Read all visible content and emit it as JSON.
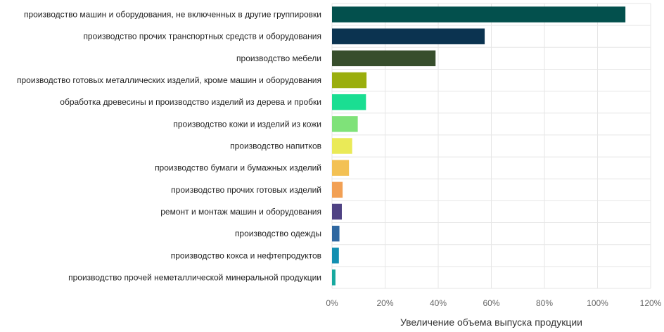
{
  "chart_data": {
    "type": "bar",
    "orientation": "horizontal",
    "categories": [
      "производство машин и оборудования, не включенных в другие группировки",
      "производство прочих транспортных средств и оборудования",
      "производство мебели",
      "производство готовых металлических изделий, кроме машин и оборудования",
      "обработка древесины и производство изделий из дерева и пробки",
      "производство кожи и изделий из кожи",
      "производство напитков",
      "производство бумаги и бумажных изделий",
      "производство прочих готовых изделий",
      "ремонт и монтаж машин и оборудования",
      "производство одежды",
      "производство кокса и нефтепродуктов",
      "производство прочей неметаллической минеральной продукции"
    ],
    "values": [
      110.5,
      57.5,
      39.0,
      13.0,
      12.8,
      9.7,
      7.6,
      6.4,
      4.0,
      3.7,
      2.8,
      2.6,
      1.3
    ],
    "colors": [
      "#03504d",
      "#0b3350",
      "#374e2c",
      "#9aae0d",
      "#1ade92",
      "#7fe279",
      "#eaea57",
      "#f3c154",
      "#f2a054",
      "#4f4283",
      "#2f67a0",
      "#138fb1",
      "#17a99f"
    ],
    "xlabel": "Увеличение объема выпуска продукции",
    "x_ticks": [
      "0%",
      "20%",
      "40%",
      "60%",
      "80%",
      "100%",
      "120%"
    ],
    "xlim": [
      0,
      120
    ],
    "grid": true
  }
}
